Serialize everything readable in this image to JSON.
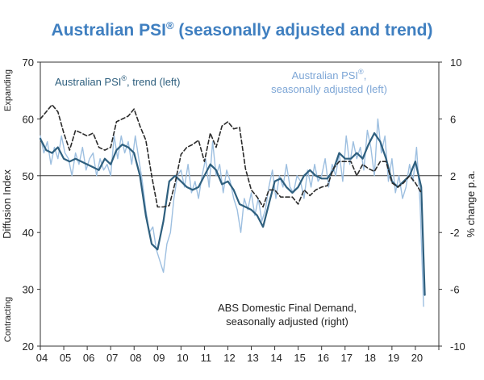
{
  "chart_data": {
    "type": "line",
    "title": "Australian PSI",
    "title_mark": "®",
    "title_suffix": " (seasonally adjusted and trend)",
    "ylabel_left": "Diffusion Index",
    "ylabel_right": "% change p.a.",
    "left_top_note": "Expanding",
    "left_bottom_note": "Contracting",
    "ylim_left": [
      20,
      70
    ],
    "yticks_left": [
      "20",
      "30",
      "40",
      "50",
      "60",
      "70"
    ],
    "ylim_right": [
      -10,
      10
    ],
    "yticks_right": [
      "-10",
      "-6",
      "-2",
      "2",
      "6",
      "10"
    ],
    "reference_line": 50,
    "xlim": [
      2004,
      2021
    ],
    "x_tick_labels": [
      "04",
      "05",
      "06",
      "07",
      "08",
      "09",
      "10",
      "11",
      "12",
      "13",
      "14",
      "15",
      "16",
      "17",
      "18",
      "19",
      "20"
    ],
    "annotations": {
      "trend": {
        "line1": "Australian PSI",
        "mark": "®",
        "line1_end": ", trend (left)",
        "color": "#2e5f7e"
      },
      "sa": {
        "line1": "Australian PSI",
        "mark": "®",
        "line1_end": ",",
        "line2": "seasonally adjusted (left)",
        "color": "#7da6d6"
      },
      "dfd": {
        "line1": "ABS Domestic Final Demand,",
        "line2": "seasonally adjusted (right)",
        "color": "#222222"
      }
    },
    "series": [
      {
        "name": "Australian PSI, seasonally adjusted (left)",
        "axis": "left",
        "color": "#9dbfe0",
        "x": [
          2004.0,
          2004.15,
          2004.3,
          2004.45,
          2004.6,
          2004.75,
          2004.9,
          2005.05,
          2005.2,
          2005.35,
          2005.5,
          2005.65,
          2005.8,
          2005.95,
          2006.1,
          2006.25,
          2006.4,
          2006.55,
          2006.7,
          2006.85,
          2007.0,
          2007.15,
          2007.3,
          2007.45,
          2007.6,
          2007.75,
          2007.9,
          2008.05,
          2008.2,
          2008.35,
          2008.5,
          2008.65,
          2008.8,
          2008.95,
          2009.1,
          2009.25,
          2009.4,
          2009.55,
          2009.7,
          2009.85,
          2010.0,
          2010.15,
          2010.3,
          2010.45,
          2010.6,
          2010.75,
          2010.9,
          2011.05,
          2011.2,
          2011.35,
          2011.5,
          2011.65,
          2011.8,
          2011.95,
          2012.1,
          2012.25,
          2012.4,
          2012.55,
          2012.7,
          2012.85,
          2013.0,
          2013.15,
          2013.3,
          2013.45,
          2013.6,
          2013.75,
          2013.9,
          2014.05,
          2014.2,
          2014.35,
          2014.5,
          2014.65,
          2014.8,
          2014.95,
          2015.1,
          2015.25,
          2015.4,
          2015.55,
          2015.7,
          2015.85,
          2016.0,
          2016.15,
          2016.3,
          2016.45,
          2016.6,
          2016.75,
          2016.9,
          2017.05,
          2017.2,
          2017.35,
          2017.5,
          2017.65,
          2017.8,
          2017.95,
          2018.1,
          2018.25,
          2018.4,
          2018.55,
          2018.7,
          2018.85,
          2019.0,
          2019.15,
          2019.3,
          2019.45,
          2019.6,
          2019.75,
          2019.9,
          2020.05,
          2020.2,
          2020.35
        ],
        "values": [
          57,
          54,
          56,
          52,
          55,
          53,
          57,
          54,
          53,
          50,
          54,
          52,
          55,
          51,
          53,
          54,
          50,
          53,
          51,
          52,
          50,
          57,
          53,
          57,
          54,
          56,
          52,
          57,
          53,
          49,
          44,
          40,
          41,
          37,
          35,
          33,
          38,
          40,
          46,
          50,
          51,
          48,
          52,
          47,
          49,
          46,
          50,
          53,
          48,
          56,
          50,
          52,
          47,
          51,
          49,
          46,
          44,
          40,
          46,
          44,
          47,
          43,
          46,
          42,
          44,
          48,
          51,
          46,
          50,
          48,
          52,
          48,
          47,
          50,
          49,
          46,
          51,
          48,
          52,
          49,
          50,
          53,
          48,
          52,
          50,
          54,
          49,
          57,
          52,
          56,
          53,
          55,
          51,
          58,
          55,
          50,
          60,
          54,
          57,
          49,
          53,
          47,
          50,
          46,
          48,
          52,
          49,
          55,
          45,
          27
        ]
      },
      {
        "name": "Australian PSI, trend (left)",
        "axis": "left",
        "color": "#2e5f7e",
        "x": [
          2004.0,
          2004.25,
          2004.5,
          2004.75,
          2005.0,
          2005.25,
          2005.5,
          2005.75,
          2006.0,
          2006.25,
          2006.5,
          2006.75,
          2007.0,
          2007.25,
          2007.5,
          2007.75,
          2008.0,
          2008.25,
          2008.5,
          2008.75,
          2009.0,
          2009.25,
          2009.5,
          2009.75,
          2010.0,
          2010.25,
          2010.5,
          2010.75,
          2011.0,
          2011.25,
          2011.5,
          2011.75,
          2012.0,
          2012.25,
          2012.5,
          2012.75,
          2013.0,
          2013.25,
          2013.5,
          2013.75,
          2014.0,
          2014.25,
          2014.5,
          2014.75,
          2015.0,
          2015.25,
          2015.5,
          2015.75,
          2016.0,
          2016.25,
          2016.5,
          2016.75,
          2017.0,
          2017.25,
          2017.5,
          2017.75,
          2018.0,
          2018.25,
          2018.5,
          2018.75,
          2019.0,
          2019.25,
          2019.5,
          2019.75,
          2020.0,
          2020.25,
          2020.4
        ],
        "values": [
          56.5,
          54.5,
          54,
          55,
          53,
          52.5,
          53,
          52.5,
          52,
          51.5,
          51,
          53,
          52,
          54.5,
          55.5,
          55,
          54,
          50,
          43,
          38,
          37,
          42,
          49,
          50,
          49,
          48,
          47.5,
          48,
          50,
          52,
          51,
          48.5,
          49,
          47.5,
          45,
          44.5,
          44,
          43,
          41,
          45,
          49,
          49.5,
          48,
          47,
          48,
          50,
          51,
          50,
          49.5,
          49.5,
          51,
          54,
          53,
          53,
          54,
          53,
          55.5,
          57.5,
          56,
          53,
          49,
          48,
          49,
          50,
          52.5,
          48,
          29
        ]
      },
      {
        "name": "ABS Domestic Final Demand, seasonally adjusted (right)",
        "axis": "right",
        "color": "#2a2a2a",
        "dashed": true,
        "x": [
          2004.0,
          2004.25,
          2004.5,
          2004.75,
          2005.0,
          2005.25,
          2005.5,
          2005.75,
          2006.0,
          2006.25,
          2006.5,
          2006.75,
          2007.0,
          2007.25,
          2007.5,
          2007.75,
          2008.0,
          2008.25,
          2008.5,
          2008.75,
          2009.0,
          2009.25,
          2009.5,
          2009.75,
          2010.0,
          2010.25,
          2010.5,
          2010.75,
          2011.0,
          2011.25,
          2011.5,
          2011.75,
          2012.0,
          2012.25,
          2012.5,
          2012.75,
          2013.0,
          2013.25,
          2013.5,
          2013.75,
          2014.0,
          2014.25,
          2014.5,
          2014.75,
          2015.0,
          2015.25,
          2015.5,
          2015.75,
          2016.0,
          2016.25,
          2016.5,
          2016.75,
          2017.0,
          2017.25,
          2017.5,
          2017.75,
          2018.0,
          2018.25,
          2018.5,
          2018.75,
          2019.0,
          2019.25,
          2019.5,
          2019.75,
          2020.0,
          2020.25
        ],
        "values": [
          6,
          6.5,
          7,
          6.5,
          5,
          3.8,
          5.2,
          5,
          4.8,
          5,
          4,
          3.8,
          4,
          5.8,
          6,
          6.2,
          6.7,
          5.5,
          4.5,
          2,
          -0.2,
          -0.2,
          -0.1,
          1.5,
          3.5,
          4,
          4.2,
          4.5,
          3,
          5,
          4,
          5.5,
          5.8,
          5.3,
          5.4,
          2.5,
          1,
          0.5,
          -0.2,
          1,
          1,
          0.5,
          0.5,
          0.5,
          0,
          1,
          0.6,
          1,
          1.2,
          1.3,
          2.5,
          3,
          3,
          3,
          2,
          2.8,
          2.5,
          2.3,
          3,
          3,
          1.5,
          1.2,
          1.5,
          2,
          1.5,
          0.8
        ]
      }
    ]
  }
}
